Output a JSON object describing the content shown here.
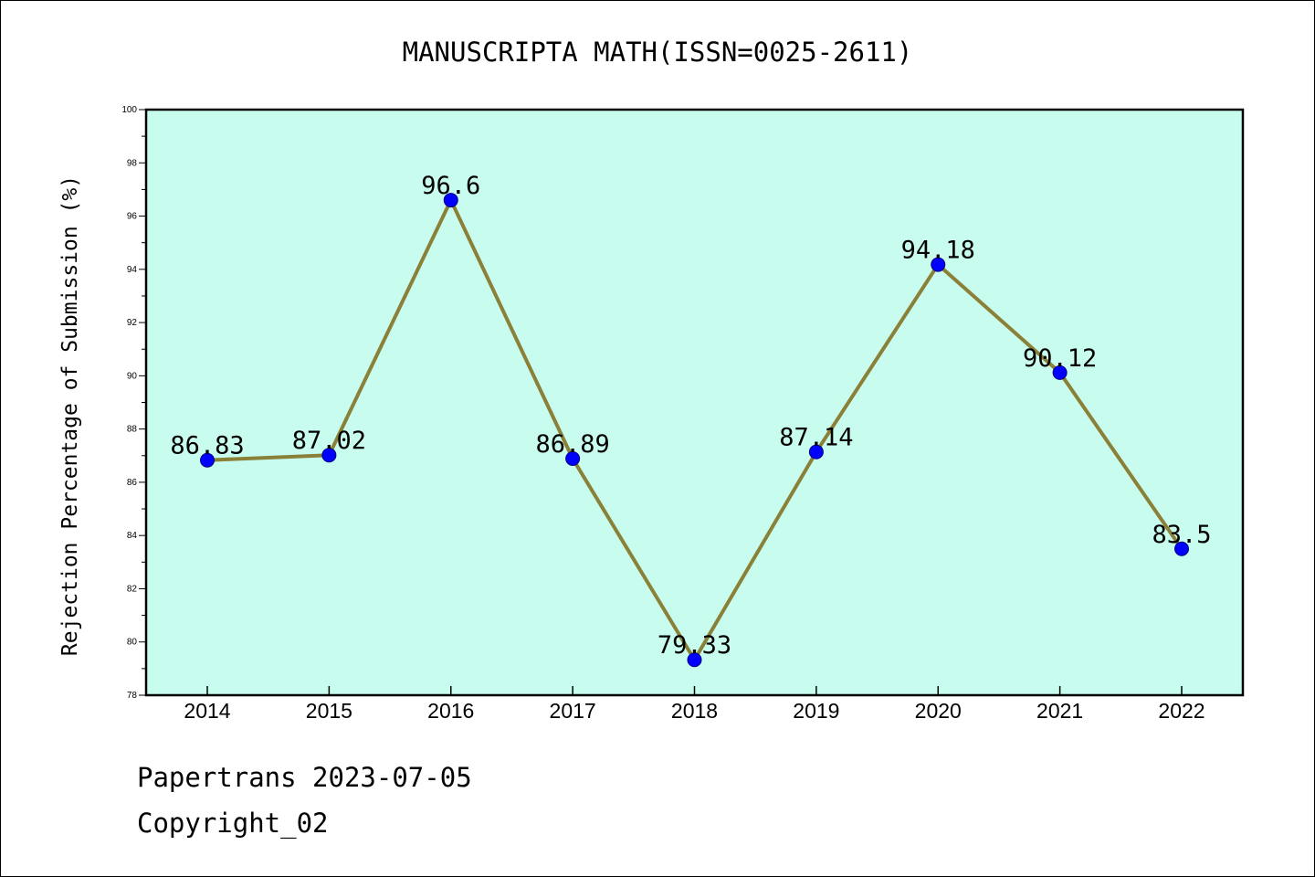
{
  "chart_data": {
    "type": "line",
    "title": "MANUSCRIPTA MATH(ISSN=0025-2611)",
    "xlabel": "",
    "ylabel": "Rejection Percentage of Submission (%)",
    "categories": [
      "2014",
      "2015",
      "2016",
      "2017",
      "2018",
      "2019",
      "2020",
      "2021",
      "2022"
    ],
    "values": [
      86.83,
      87.02,
      96.6,
      86.89,
      79.33,
      87.14,
      94.18,
      90.12,
      83.5
    ],
    "data_labels": [
      "86.83",
      "87.02",
      "96.6",
      "86.89",
      "79.33",
      "87.14",
      "94.18",
      "90.12",
      "83.5"
    ],
    "ylim": [
      78,
      100
    ],
    "yticks": [
      78,
      80,
      82,
      84,
      86,
      88,
      90,
      92,
      94,
      96,
      98,
      100
    ],
    "grid": false,
    "colors": {
      "plot_background": "#c8fcee",
      "line": "#8b8038",
      "marker": "#0000ff"
    }
  },
  "footer": {
    "line1": "Papertrans 2023-07-05",
    "line2": "Copyright_02"
  }
}
